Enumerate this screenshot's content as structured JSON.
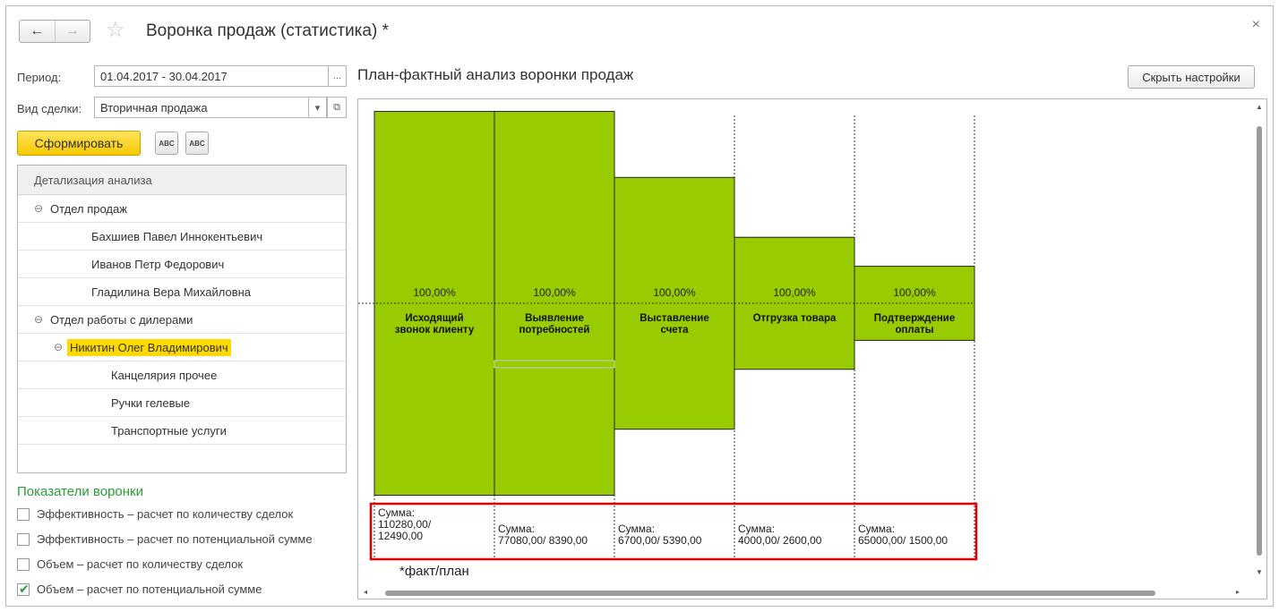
{
  "window": {
    "title": "Воронка продаж (статистика) *"
  },
  "nav": {
    "back": "←",
    "forward": "→",
    "star": "☆",
    "close": "×"
  },
  "filters": {
    "period_label": "Период:",
    "period_value": "01.04.2017 - 30.04.2017",
    "period_btn": "...",
    "deal_type_label": "Вид сделки:",
    "deal_type_value": "Вторичная продажа",
    "dropdown_glyph": "▾",
    "open_glyph": "⧉"
  },
  "toolbar": {
    "generate": "Сформировать",
    "collapse_icon_text": "ABC",
    "expand_icon_text": "ABC"
  },
  "tree": {
    "header": "Детализация анализа",
    "toggle_glyph": "⊖",
    "rows": [
      {
        "text": "Отдел продаж",
        "level": 0,
        "toggle": true
      },
      {
        "text": "Бахшиев Павел Иннокентьевич",
        "level": 1,
        "toggle": false
      },
      {
        "text": "Иванов Петр Федорович",
        "level": 1,
        "toggle": false
      },
      {
        "text": "Гладилина Вера Михайловна",
        "level": 1,
        "toggle": false
      },
      {
        "text": "Отдел работы с дилерами",
        "level": 0,
        "toggle": true
      },
      {
        "text": "Никитин Олег Владимирович",
        "level": 1,
        "toggle": true,
        "selected": true
      },
      {
        "text": "Канцелярия прочее",
        "level": 2,
        "toggle": false
      },
      {
        "text": "Ручки гелевые",
        "level": 2,
        "toggle": false
      },
      {
        "text": "Транспортные услуги",
        "level": 2,
        "toggle": false
      }
    ]
  },
  "indicators": {
    "title": "Показатели воронки",
    "items": [
      {
        "label": "Эффективность – расчет по количеству сделок",
        "checked": false
      },
      {
        "label": "Эффективность – расчет по потенциальной сумме",
        "checked": false
      },
      {
        "label": "Объем – расчет по количеству сделок",
        "checked": false
      },
      {
        "label": "Объем – расчет по потенциальной сумме",
        "checked": true
      }
    ]
  },
  "report": {
    "title": "План-фактный анализ воронки продаж",
    "hide_settings": "Скрыть настройки",
    "footnote": "*факт/план"
  },
  "chart_data": {
    "type": "bar",
    "title": "",
    "bar_color": "#99cc00",
    "highlight_color": "#e00000",
    "categories": [
      [
        "Исходящий",
        "звонок клиенту"
      ],
      [
        "Выявление",
        "потребностей"
      ],
      [
        "Выставление",
        "счета"
      ],
      [
        "Отгрузка товара"
      ],
      [
        "Подтверждение",
        "оплаты"
      ]
    ],
    "percent_labels": [
      "100,00%",
      "100,00%",
      "100,00%",
      "100,00%",
      "100,00%"
    ],
    "relative_size": [
      1.0,
      1.0,
      0.656,
      0.344,
      0.193
    ],
    "sum_labels": [
      [
        "Сумма:",
        "110280,00/",
        "12490,00"
      ],
      [
        "Сумма:",
        "77080,00/ 8390,00"
      ],
      [
        "Сумма:",
        "6700,00/ 5390,00"
      ],
      [
        "Сумма:",
        "4000,00/ 2600,00"
      ],
      [
        "Сумма:",
        "65000,00/ 1500,00"
      ]
    ]
  }
}
